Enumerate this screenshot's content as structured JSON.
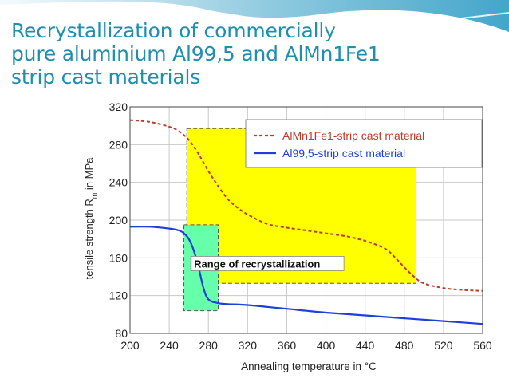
{
  "slide": {
    "title_lines": [
      "Recrystallization of commercially",
      "pure aluminium Al99,5 and AlMn1Fe1",
      "strip cast materials"
    ],
    "colors": {
      "title": "#1f8fb0",
      "header_wave": "#2e9cc4",
      "highlight": "#ffff00",
      "green_box": "#66ffaa"
    }
  },
  "chart_data": {
    "type": "line",
    "xlabel": "Annealing temperature in °C",
    "ylabel_main": "tensile strength R",
    "ylabel_sub": "m",
    "ylabel_tail": " in MPa",
    "xlim": [
      200,
      560
    ],
    "ylim": [
      80,
      320
    ],
    "x_ticks": [
      200,
      240,
      280,
      320,
      360,
      400,
      440,
      480,
      520,
      560
    ],
    "y_ticks": [
      80,
      120,
      160,
      200,
      240,
      280,
      320
    ],
    "grid": true,
    "legend": {
      "position": "top-right"
    },
    "series": [
      {
        "name": "AlMn1Fe1-strip cast material",
        "color": "#c0392b",
        "style": "dashed",
        "x": [
          200,
          220,
          240,
          250,
          260,
          270,
          280,
          290,
          300,
          310,
          320,
          340,
          360,
          380,
          400,
          420,
          440,
          460,
          470,
          480,
          490,
          500,
          520,
          540,
          560
        ],
        "y": [
          306,
          304,
          299,
          294,
          285,
          270,
          252,
          236,
          222,
          213,
          206,
          196,
          192,
          189,
          186,
          183,
          178,
          170,
          161,
          150,
          140,
          133,
          128,
          126,
          125
        ]
      },
      {
        "name": "Al99,5-strip cast material",
        "color": "#1f3fd6",
        "style": "solid",
        "x": [
          200,
          220,
          240,
          250,
          255,
          260,
          265,
          270,
          275,
          280,
          290,
          300,
          320,
          360,
          400,
          440,
          480,
          520,
          560
        ],
        "y": [
          193,
          193,
          191,
          189,
          186,
          180,
          168,
          150,
          128,
          116,
          112,
          111,
          110,
          106,
          102,
          99,
          96,
          93,
          90
        ]
      }
    ],
    "annotations": [
      {
        "type": "region",
        "label": "",
        "x": [
          258,
          492
        ],
        "y": [
          133,
          297
        ],
        "color": "#ffff00"
      },
      {
        "type": "region",
        "label": "",
        "x": [
          255,
          290
        ],
        "y": [
          104,
          195
        ],
        "color": "#66ffaa"
      },
      {
        "type": "text",
        "label": "Range of recrystallization",
        "x": 262,
        "y": 154
      }
    ]
  }
}
